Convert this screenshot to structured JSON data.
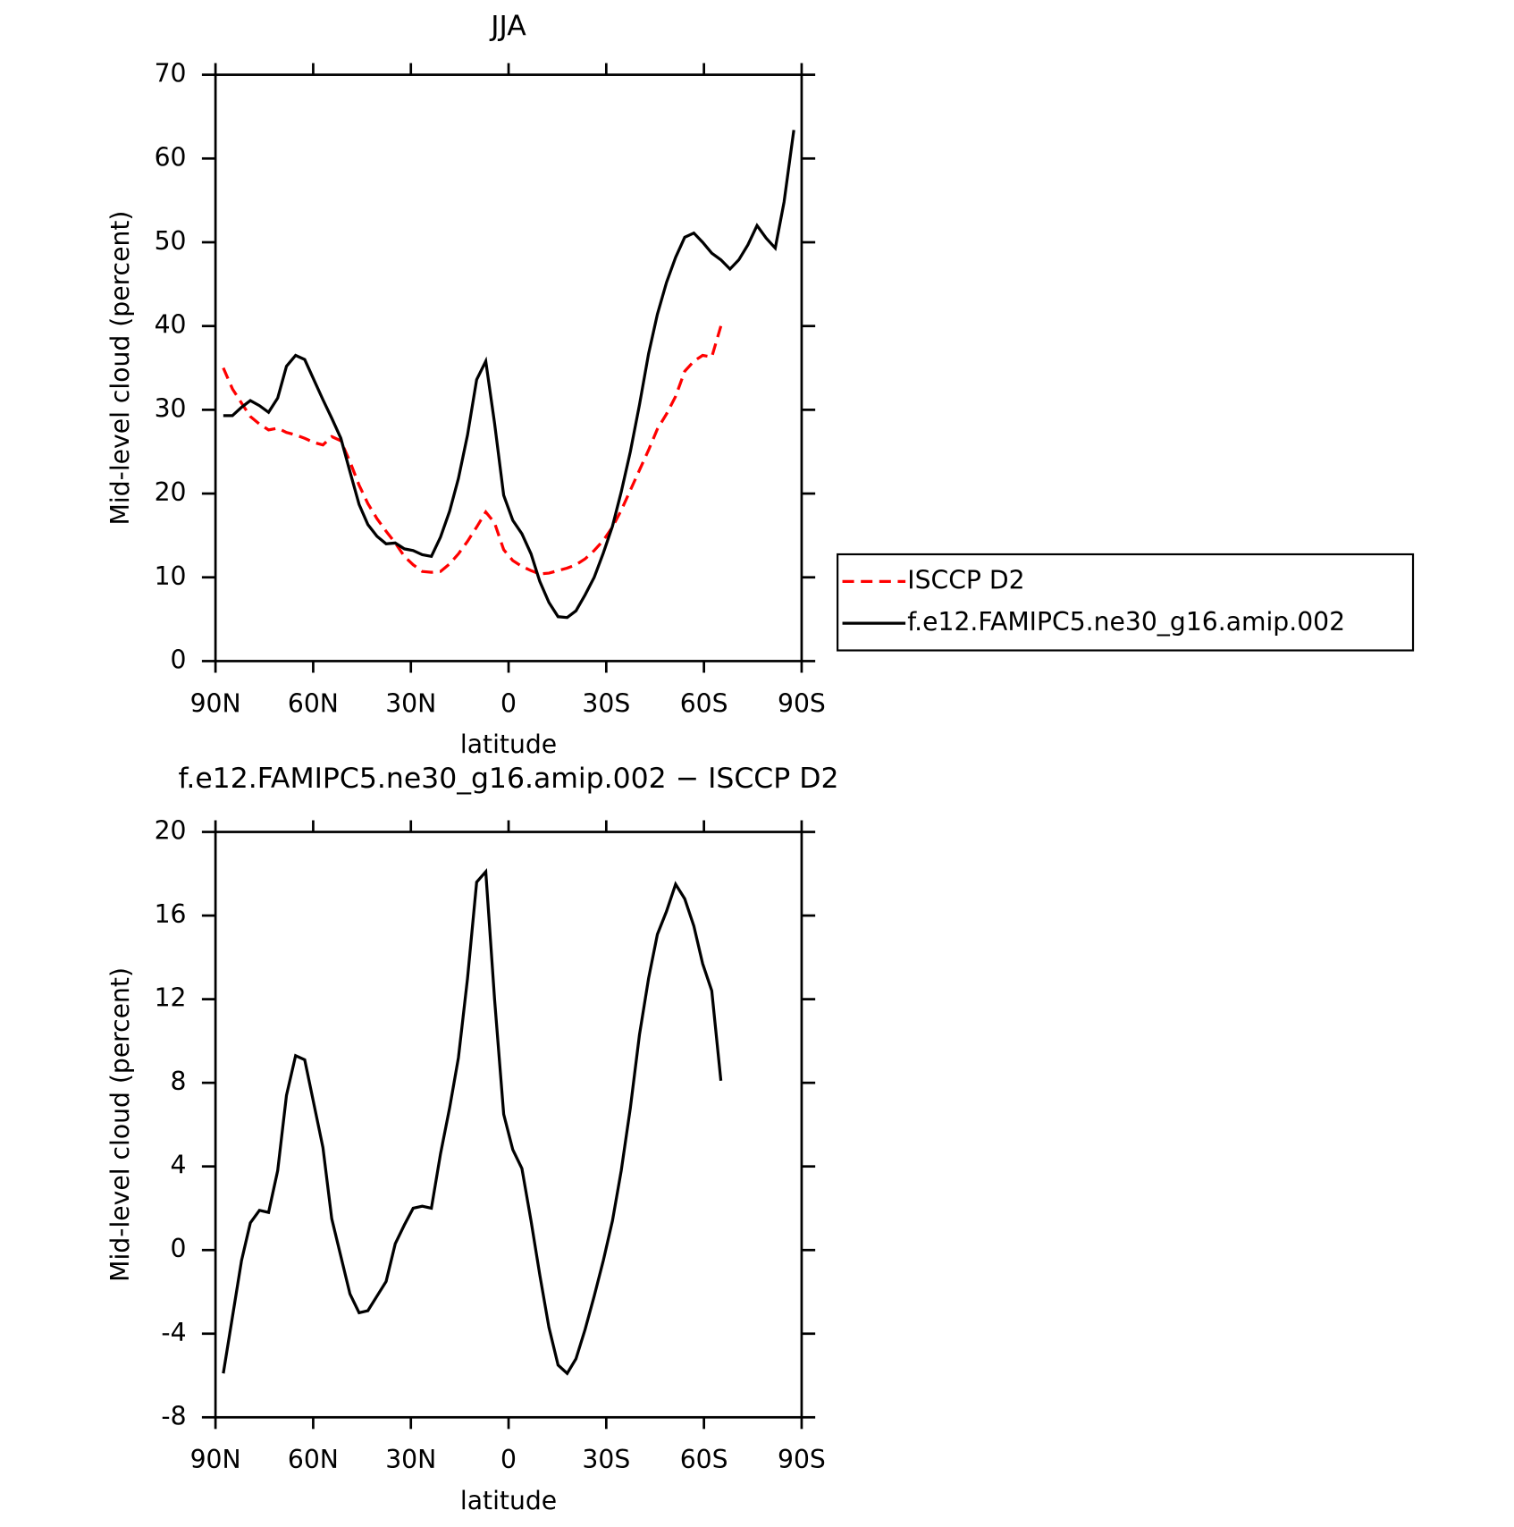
{
  "chart_data": [
    {
      "type": "line",
      "title": "JJA",
      "xlabel": "latitude",
      "ylabel": "Mid-level cloud (percent)",
      "x": [
        87.6,
        84.8,
        82.0,
        79.3,
        76.5,
        73.7,
        70.9,
        68.2,
        65.4,
        62.6,
        59.8,
        57.0,
        54.3,
        51.5,
        48.7,
        45.9,
        43.2,
        40.4,
        37.6,
        34.8,
        32.0,
        29.3,
        26.5,
        23.7,
        20.9,
        18.1,
        15.4,
        12.6,
        9.8,
        7.0,
        4.3,
        1.5,
        -1.3,
        -4.1,
        -6.9,
        -9.6,
        -12.4,
        -15.2,
        -18.0,
        -20.7,
        -23.5,
        -26.3,
        -29.1,
        -31.9,
        -34.6,
        -37.4,
        -40.2,
        -43.0,
        -45.7,
        -48.5,
        -51.3,
        -54.1,
        -56.9,
        -59.6,
        -62.4,
        -65.2,
        -68.0,
        -70.7,
        -73.5,
        -76.3,
        -79.1,
        -81.9,
        -84.6,
        -87.6
      ],
      "series": [
        {
          "name": "ISCCP D2",
          "color": "#ff0000",
          "line_style": "dashed",
          "values": [
            35.0,
            32.5,
            30.8,
            29.2,
            28.3,
            27.6,
            27.8,
            27.3,
            27.0,
            26.6,
            26.1,
            25.8,
            26.8,
            26.3,
            23.8,
            21.0,
            18.8,
            17.0,
            15.5,
            14.1,
            12.5,
            11.5,
            10.7,
            10.6,
            10.7,
            11.6,
            12.8,
            14.3,
            16.0,
            17.8,
            16.5,
            13.3,
            12.0,
            11.3,
            10.8,
            10.4,
            10.5,
            10.8,
            11.1,
            11.5,
            12.2,
            13.2,
            14.4,
            16.0,
            18.0,
            20.4,
            22.8,
            25.2,
            27.7,
            29.5,
            31.6,
            34.6,
            35.8,
            36.5,
            36.3,
            40.0,
            null,
            null,
            null,
            null,
            null,
            null,
            null,
            null
          ]
        },
        {
          "name": "f.e12.FAMIPC5.ne30_g16.amip.002",
          "color": "#000000",
          "line_style": "solid",
          "values": [
            29.3,
            29.3,
            30.3,
            31.1,
            30.5,
            29.7,
            31.4,
            35.2,
            36.5,
            36.0,
            33.6,
            31.2,
            29.0,
            26.6,
            22.6,
            18.7,
            16.3,
            14.9,
            14.0,
            14.1,
            13.4,
            13.2,
            12.7,
            12.5,
            14.8,
            17.9,
            21.8,
            27.0,
            33.6,
            35.8,
            28.4,
            19.8,
            16.8,
            15.2,
            12.8,
            9.5,
            7.0,
            5.3,
            5.2,
            6.0,
            7.9,
            10.0,
            12.9,
            16.1,
            20.2,
            25.0,
            30.6,
            36.7,
            41.4,
            45.2,
            48.2,
            50.6,
            51.1,
            50.0,
            48.7,
            47.9,
            46.8,
            47.9,
            49.7,
            52.0,
            50.5,
            49.3,
            54.8,
            63.4
          ]
        }
      ],
      "xlim": [
        90,
        -90
      ],
      "xticks": [
        {
          "value": 90,
          "label": "90N"
        },
        {
          "value": 60,
          "label": "60N"
        },
        {
          "value": 30,
          "label": "30N"
        },
        0,
        {
          "value": -30,
          "label": "30S"
        },
        {
          "value": -60,
          "label": "60S"
        },
        {
          "value": -90,
          "label": "90S"
        }
      ],
      "ylim": [
        0,
        70
      ],
      "yticks": [
        0,
        10,
        20,
        30,
        40,
        50,
        60,
        70
      ],
      "legend": "right"
    },
    {
      "type": "line",
      "title": "f.e12.FAMIPC5.ne30_g16.amip.002 − ISCCP D2",
      "xlabel": "latitude",
      "ylabel": "Mid-level cloud (percent)",
      "x": [
        87.6,
        84.8,
        82.0,
        79.3,
        76.5,
        73.7,
        70.9,
        68.2,
        65.4,
        62.6,
        59.8,
        57.0,
        54.3,
        51.5,
        48.7,
        45.9,
        43.2,
        40.4,
        37.6,
        34.8,
        32.0,
        29.3,
        26.5,
        23.7,
        20.9,
        18.1,
        15.4,
        12.6,
        9.8,
        7.0,
        4.3,
        1.5,
        -1.3,
        -4.1,
        -6.9,
        -9.6,
        -12.4,
        -15.2,
        -18.0,
        -20.7,
        -23.5,
        -26.3,
        -29.1,
        -31.9,
        -34.6,
        -37.4,
        -40.2,
        -43.0,
        -45.7,
        -48.5,
        -51.3,
        -54.1,
        -56.9,
        -59.6,
        -62.4,
        -65.2
      ],
      "series": [
        {
          "color": "#000000",
          "line_style": "solid",
          "values": [
            -5.9,
            -3.2,
            -0.5,
            1.3,
            1.9,
            1.8,
            3.8,
            7.4,
            9.3,
            9.1,
            7.0,
            4.9,
            1.5,
            -0.3,
            -2.1,
            -3.0,
            -2.9,
            -2.2,
            -1.5,
            0.3,
            1.2,
            2.0,
            2.1,
            2.0,
            4.6,
            6.8,
            9.2,
            13.0,
            17.6,
            18.1,
            12.0,
            6.5,
            4.8,
            3.9,
            1.4,
            -1.2,
            -3.7,
            -5.5,
            -5.9,
            -5.2,
            -3.8,
            -2.2,
            -0.5,
            1.4,
            3.8,
            6.8,
            10.3,
            13.0,
            15.1,
            16.2,
            17.5,
            16.8,
            15.5,
            13.7,
            12.4,
            8.1
          ]
        }
      ],
      "xlim": [
        90,
        -90
      ],
      "xticks": [
        {
          "value": 90,
          "label": "90N"
        },
        {
          "value": 60,
          "label": "60N"
        },
        {
          "value": 30,
          "label": "30N"
        },
        0,
        {
          "value": -30,
          "label": "30S"
        },
        {
          "value": -60,
          "label": "60S"
        },
        {
          "value": -90,
          "label": "90S"
        }
      ],
      "ylim": [
        -8,
        20
      ],
      "yticks": [
        -8,
        -4,
        0,
        4,
        8,
        12,
        16,
        20
      ]
    }
  ]
}
